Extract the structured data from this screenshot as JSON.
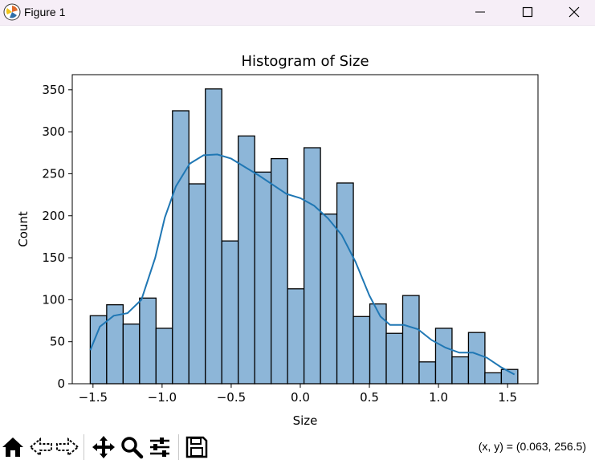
{
  "window": {
    "title": "Figure 1"
  },
  "toolbar": {
    "items": [
      {
        "name": "home-icon"
      },
      {
        "name": "back-icon"
      },
      {
        "name": "forward-icon"
      },
      {
        "name": "pan-icon"
      },
      {
        "name": "zoom-icon"
      },
      {
        "name": "configure-subplots-icon"
      },
      {
        "name": "save-icon"
      }
    ],
    "coords": "(x, y) = (0.063, 256.5)"
  },
  "chart_data": {
    "type": "bar",
    "title": "Histogram of Size",
    "xlabel": "Size",
    "ylabel": "Count",
    "xlim": [
      -1.65,
      1.72
    ],
    "ylim": [
      0,
      368
    ],
    "xticks": [
      -1.5,
      -1.0,
      -0.5,
      0.0,
      0.5,
      1.0,
      1.5
    ],
    "xtick_labels": [
      "−1.5",
      "−1.0",
      "−0.5",
      "0.0",
      "0.5",
      "1.0",
      "1.5"
    ],
    "yticks": [
      0,
      50,
      100,
      150,
      200,
      250,
      300,
      350
    ],
    "ytick_labels": [
      "0",
      "50",
      "100",
      "150",
      "200",
      "250",
      "300",
      "350"
    ],
    "grid": false,
    "bin_edges": [
      -1.52,
      -1.401,
      -1.282,
      -1.163,
      -1.044,
      -0.925,
      -0.806,
      -0.687,
      -0.568,
      -0.449,
      -0.33,
      -0.211,
      -0.092,
      0.027,
      0.146,
      0.265,
      0.384,
      0.503,
      0.622,
      0.741,
      0.86,
      0.979,
      1.098,
      1.217,
      1.336,
      1.455,
      1.574
    ],
    "counts": [
      81,
      94,
      71,
      102,
      66,
      325,
      238,
      351,
      170,
      295,
      252,
      268,
      113,
      281,
      202,
      239,
      80,
      95,
      60,
      105,
      26,
      66,
      32,
      61,
      13,
      17
    ],
    "bar_color": "#8db6d8",
    "edge_color": "#000000",
    "kde": {
      "color": "#1f77b4",
      "points": [
        [
          -1.52,
          40
        ],
        [
          -1.45,
          68
        ],
        [
          -1.35,
          81
        ],
        [
          -1.25,
          84
        ],
        [
          -1.15,
          100
        ],
        [
          -1.05,
          150
        ],
        [
          -0.98,
          198
        ],
        [
          -0.9,
          235
        ],
        [
          -0.8,
          262
        ],
        [
          -0.7,
          272
        ],
        [
          -0.6,
          273
        ],
        [
          -0.5,
          268
        ],
        [
          -0.4,
          258
        ],
        [
          -0.3,
          248
        ],
        [
          -0.2,
          237
        ],
        [
          -0.1,
          226
        ],
        [
          0.0,
          221
        ],
        [
          0.1,
          212
        ],
        [
          0.2,
          197
        ],
        [
          0.3,
          177
        ],
        [
          0.4,
          145
        ],
        [
          0.5,
          105
        ],
        [
          0.58,
          80
        ],
        [
          0.65,
          70
        ],
        [
          0.75,
          70
        ],
        [
          0.85,
          65
        ],
        [
          0.95,
          52
        ],
        [
          1.05,
          43
        ],
        [
          1.15,
          37
        ],
        [
          1.25,
          37
        ],
        [
          1.35,
          31
        ],
        [
          1.45,
          20
        ],
        [
          1.55,
          11
        ]
      ]
    }
  }
}
